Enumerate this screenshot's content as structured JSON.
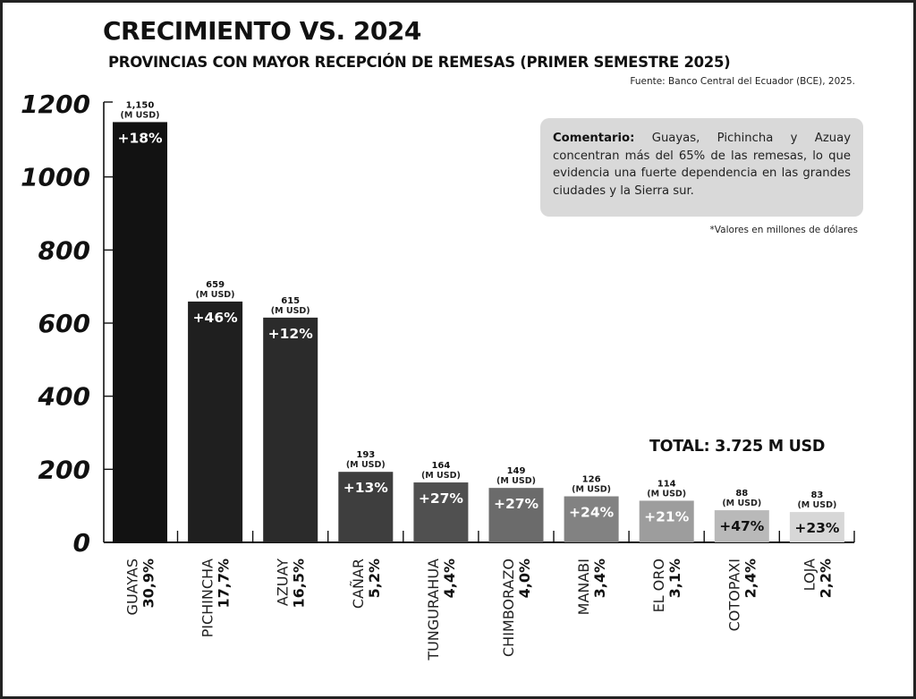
{
  "header": {
    "title": "CRECIMIENTO VS. 2024",
    "subtitle": "PROVINCIAS CON MAYOR RECEPCIÓN DE REMESAS (PRIMER SEMESTRE 2025)",
    "source": "Fuente: Banco Central del Ecuador (BCE), 2025."
  },
  "comment": {
    "label": "Comentario:",
    "text": " Guayas, Pichincha y Azuay concentran más del 65% de las remesas, lo que evidencia una fuerte dependencia en las grandes ciudades y la Sierra sur."
  },
  "note": "*Valores en millones de dólares",
  "total": "TOTAL: 3.725 M USD",
  "chart_data": {
    "type": "bar",
    "title": "CRECIMIENTO VS. 2024",
    "subtitle": "PROVINCIAS CON MAYOR RECEPCIÓN DE REMESAS (PRIMER SEMESTRE 2025)",
    "xlabel": "",
    "ylabel": "",
    "ylim": [
      0,
      1200
    ],
    "yticks": [
      "0",
      "200",
      "400",
      "600",
      "800",
      "1000",
      "1200"
    ],
    "ytick_values": [
      0,
      200,
      400,
      600,
      800,
      1000,
      1200
    ],
    "grid": false,
    "unit_label": "(M USD)",
    "categories": [
      "GUAYAS",
      "PICHINCHA",
      "AZUAY",
      "CAÑAR",
      "TUNGURAHUA",
      "CHIMBORAZO",
      "MANABI",
      "EL ORO",
      "COTOPAXI",
      "LOJA"
    ],
    "shares": [
      "30,9%",
      "17,7%",
      "16,5%",
      "5,2%",
      "4,4%",
      "4,0%",
      "3,4%",
      "3,1%",
      "2,4%",
      "2,2%"
    ],
    "values": [
      1150,
      659,
      615,
      193,
      164,
      149,
      126,
      114,
      88,
      83
    ],
    "value_labels": [
      "1,150",
      "659",
      "615",
      "193",
      "164",
      "149",
      "126",
      "114",
      "88",
      "83"
    ],
    "growth_labels": [
      "+18%",
      "+46%",
      "+12%",
      "+13%",
      "+27%",
      "+27%",
      "+24%",
      "+21%",
      "+47%",
      "+23%"
    ],
    "bar_colors": [
      "#121212",
      "#1f1f1f",
      "#2b2b2b",
      "#3e3e3e",
      "#505050",
      "#6b6b6b",
      "#828282",
      "#9d9d9d",
      "#b9b9b9",
      "#d7d7d7"
    ],
    "growth_label_colors": [
      "#ffffff",
      "#ffffff",
      "#ffffff",
      "#ffffff",
      "#ffffff",
      "#ffffff",
      "#ffffff",
      "#ffffff",
      "#111111",
      "#111111"
    ]
  }
}
